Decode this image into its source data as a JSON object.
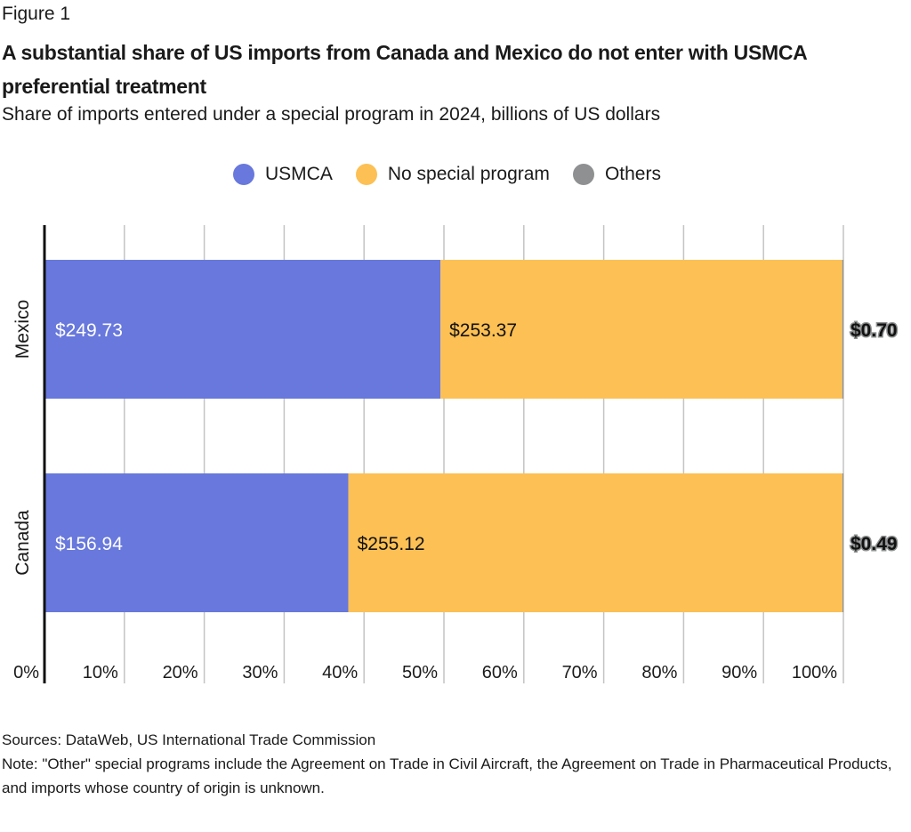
{
  "figure_label": "Figure 1",
  "title": "A substantial share of US imports from Canada and Mexico do not enter with USMCA preferential treatment",
  "subtitle": "Share of imports entered under a special program in 2024, billions of US dollars",
  "colors": {
    "USMCA": "#6878DC",
    "No special program": "#FCC054",
    "Others": "#8E9091"
  },
  "chart_data": {
    "type": "bar",
    "orientation": "horizontal",
    "stacked": "percent",
    "title": "A substantial share of US imports from Canada and Mexico do not enter with USMCA preferential treatment",
    "subtitle": "Share of imports entered under a special program in 2024, billions of US dollars",
    "categories": [
      "Mexico",
      "Canada"
    ],
    "series": [
      {
        "name": "USMCA",
        "values": [
          249.73,
          156.94
        ],
        "labels": [
          "$249.73",
          "$156.94"
        ]
      },
      {
        "name": "No special program",
        "values": [
          253.37,
          255.12
        ],
        "labels": [
          "$253.37",
          "$255.12"
        ]
      },
      {
        "name": "Others",
        "values": [
          0.7,
          0.49
        ],
        "labels": [
          "$0.70",
          "$0.49"
        ]
      }
    ],
    "xlabel": "",
    "ylabel": "",
    "xlim": [
      0,
      100
    ],
    "xticks": [
      "0%",
      "10%",
      "20%",
      "30%",
      "40%",
      "50%",
      "60%",
      "70%",
      "80%",
      "90%",
      "100%"
    ],
    "grid": true,
    "legend": "top-center"
  },
  "footer": {
    "sources": "Sources: DataWeb, US International Trade Commission",
    "note": "Note: \"Other\" special programs include the Agreement on Trade in Civil Aircraft, the Agreement on Trade in Pharmaceutical Products, and imports whose country of origin is unknown."
  }
}
